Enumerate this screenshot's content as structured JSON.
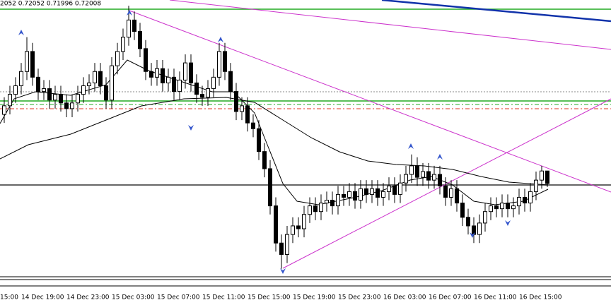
{
  "chart_data": {
    "type": "candlestick",
    "header": "2052 0.72052 0.71996 0.72008",
    "clipped_tick_label": "15:00",
    "categories": [
      null,
      null,
      null,
      "14 Dec 19:00",
      null,
      null,
      null,
      null,
      null,
      null,
      null,
      "14 Dec 23:00",
      null,
      null,
      null,
      null,
      null,
      null,
      null,
      "15 Dec 03:00",
      null,
      null,
      null,
      null,
      null,
      null,
      null,
      "15 Dec 07:00",
      null,
      null,
      null,
      null,
      null,
      null,
      null,
      "15 Dec 11:00",
      null,
      null,
      null,
      null,
      null,
      null,
      null,
      "15 Dec 15:00",
      null,
      null,
      null,
      null,
      null,
      null,
      null,
      "15 Dec 19:00",
      null,
      null,
      null,
      null,
      null,
      null,
      null,
      "15 Dec 23:00",
      null,
      null,
      null,
      null,
      null,
      null,
      null,
      "16 Dec 03:00",
      null,
      null,
      null,
      null,
      null,
      null,
      null,
      "16 Dec 07:00",
      null,
      null,
      null,
      null,
      null,
      null,
      null,
      "16 Dec 11:00",
      null,
      null,
      null,
      null,
      null,
      null,
      null,
      "16 Dec 15:00",
      null,
      null,
      null,
      null,
      null
    ],
    "open": [
      0.7225,
      0.7228,
      0.7232,
      0.7235,
      0.724,
      0.7247,
      0.7238,
      0.7233,
      0.7234,
      0.723,
      0.7232,
      0.7229,
      0.7227,
      0.7229,
      0.7232,
      0.7235,
      0.7236,
      0.724,
      0.7235,
      0.723,
      0.7242,
      0.7247,
      0.7252,
      0.7258,
      0.7254,
      0.7248,
      0.724,
      0.7238,
      0.7241,
      0.7236,
      0.7238,
      0.7233,
      0.7237,
      0.7243,
      0.7236,
      0.7232,
      0.7231,
      0.7234,
      0.7238,
      0.7247,
      0.724,
      0.7233,
      0.7226,
      0.7228,
      0.7222,
      0.722,
      0.7212,
      0.7206,
      0.7193,
      0.718,
      0.7176,
      0.7183,
      0.7186,
      0.7185,
      0.719,
      0.7193,
      0.7191,
      0.7194,
      0.7195,
      0.7193,
      0.7197,
      0.7196,
      0.7198,
      0.7195,
      0.7199,
      0.7197,
      0.7199,
      0.7196,
      0.7198,
      0.72,
      0.7197,
      0.7201,
      0.7204,
      0.7207,
      0.7203,
      0.7205,
      0.7202,
      0.7204,
      0.72,
      0.7196,
      0.7199,
      0.7194,
      0.7189,
      0.7186,
      0.7183,
      0.7187,
      0.7191,
      0.7193,
      0.7192,
      0.7194,
      0.7192,
      0.7193,
      0.7196,
      0.7194,
      0.7198,
      0.7202,
      0.72052
    ],
    "high": [
      0.7231,
      0.7235,
      0.7238,
      0.7243,
      0.7252,
      0.725,
      0.7241,
      0.7237,
      0.7237,
      0.7235,
      0.7235,
      0.7232,
      0.7232,
      0.7235,
      0.7238,
      0.7239,
      0.7243,
      0.7243,
      0.7238,
      0.7245,
      0.725,
      0.7255,
      0.7263,
      0.7261,
      0.7257,
      0.7251,
      0.7243,
      0.7244,
      0.7244,
      0.7241,
      0.7241,
      0.724,
      0.7246,
      0.7246,
      0.7239,
      0.7235,
      0.7237,
      0.7241,
      0.725,
      0.725,
      0.7243,
      0.7236,
      0.7231,
      0.7231,
      0.7225,
      0.7223,
      0.7215,
      0.7209,
      0.7196,
      0.7183,
      0.7186,
      0.7189,
      0.7189,
      0.7193,
      0.7196,
      0.7196,
      0.7197,
      0.7198,
      0.7198,
      0.72,
      0.72,
      0.7201,
      0.7201,
      0.7202,
      0.7202,
      0.7202,
      0.7202,
      0.7201,
      0.7203,
      0.7203,
      0.7204,
      0.7207,
      0.7211,
      0.721,
      0.7208,
      0.7208,
      0.7207,
      0.7207,
      0.7203,
      0.7202,
      0.7202,
      0.7197,
      0.7192,
      0.7189,
      0.719,
      0.7194,
      0.7196,
      0.7196,
      0.7197,
      0.7197,
      0.7196,
      0.7199,
      0.7199,
      0.7201,
      0.7205,
      0.7207,
      0.72052
    ],
    "low": [
      0.7222,
      0.7225,
      0.7229,
      0.7232,
      0.7237,
      0.7235,
      0.723,
      0.723,
      0.7227,
      0.7227,
      0.7226,
      0.7224,
      0.7224,
      0.7226,
      0.7229,
      0.7232,
      0.7233,
      0.7232,
      0.7227,
      0.7227,
      0.7239,
      0.7244,
      0.7249,
      0.7251,
      0.7245,
      0.7237,
      0.7235,
      0.7235,
      0.7233,
      0.7233,
      0.723,
      0.723,
      0.7234,
      0.7233,
      0.7229,
      0.7228,
      0.7228,
      0.7231,
      0.7235,
      0.7237,
      0.723,
      0.7223,
      0.7223,
      0.7219,
      0.7217,
      0.7209,
      0.7203,
      0.719,
      0.7177,
      0.7171,
      0.7173,
      0.718,
      0.7182,
      0.7182,
      0.7187,
      0.7188,
      0.7188,
      0.7191,
      0.719,
      0.719,
      0.7193,
      0.7193,
      0.7192,
      0.7192,
      0.7194,
      0.7194,
      0.7193,
      0.7193,
      0.7195,
      0.7194,
      0.7194,
      0.7198,
      0.7201,
      0.72,
      0.72,
      0.7199,
      0.7199,
      0.7197,
      0.7193,
      0.7193,
      0.7191,
      0.7186,
      0.7183,
      0.718,
      0.718,
      0.7184,
      0.7188,
      0.7189,
      0.7189,
      0.7189,
      0.7189,
      0.719,
      0.7191,
      0.7191,
      0.7195,
      0.7199,
      0.71996
    ],
    "close": [
      0.7228,
      0.7232,
      0.7235,
      0.724,
      0.7247,
      0.7238,
      0.7233,
      0.7234,
      0.723,
      0.7232,
      0.7229,
      0.7227,
      0.7229,
      0.7232,
      0.7235,
      0.7236,
      0.724,
      0.7235,
      0.723,
      0.7242,
      0.7247,
      0.7252,
      0.7258,
      0.7254,
      0.7248,
      0.724,
      0.7238,
      0.7241,
      0.7236,
      0.7238,
      0.7233,
      0.7237,
      0.7243,
      0.7236,
      0.7232,
      0.7231,
      0.7234,
      0.7238,
      0.7247,
      0.724,
      0.7233,
      0.7226,
      0.7228,
      0.7222,
      0.722,
      0.7212,
      0.7206,
      0.7193,
      0.718,
      0.7176,
      0.7183,
      0.7186,
      0.7185,
      0.719,
      0.7193,
      0.7191,
      0.7194,
      0.7195,
      0.7193,
      0.7197,
      0.7196,
      0.7198,
      0.7195,
      0.7199,
      0.7197,
      0.7199,
      0.7196,
      0.7198,
      0.72,
      0.7197,
      0.7201,
      0.7204,
      0.7207,
      0.7203,
      0.7205,
      0.7202,
      0.7204,
      0.72,
      0.7196,
      0.7199,
      0.7194,
      0.7189,
      0.7186,
      0.7183,
      0.7187,
      0.7191,
      0.7193,
      0.7192,
      0.7194,
      0.7192,
      0.7193,
      0.7196,
      0.7194,
      0.7198,
      0.7202,
      0.72052,
      0.72008
    ],
    "ylim": [
      0.7165,
      0.7265
    ],
    "up_color": "#ffffff",
    "down_color": "#000000",
    "outline_color": "#000000"
  }
}
